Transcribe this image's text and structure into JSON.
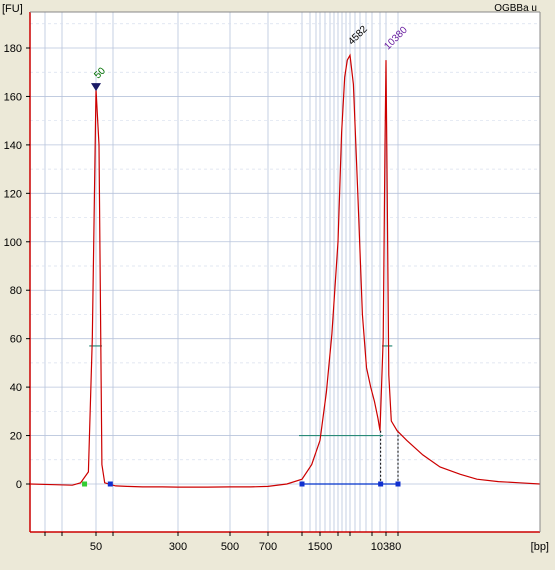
{
  "sample_name": "OGBBa u",
  "colors": {
    "trace": "#cc0000",
    "plot_background": "#ffffff",
    "frame": "#cc0000",
    "grid": "#b8c4dc",
    "marker_lower": "#007000",
    "marker_upper": "#6a1fa0",
    "peak_label": "#000000",
    "region_line": "#0033cc",
    "threshold_line": "#2a8a78"
  },
  "chart_data": {
    "type": "line",
    "title": "",
    "xlabel": "[bp]",
    "ylabel": "[FU]",
    "ylim": [
      -10,
      195
    ],
    "yticks": [
      0,
      20,
      40,
      60,
      80,
      100,
      120,
      140,
      160,
      180
    ],
    "xtick_labels": [
      "50",
      "300",
      "500",
      "700",
      "1500",
      "10380"
    ],
    "grid": true,
    "annotations": [
      {
        "label": "50",
        "x": 50,
        "y": 163,
        "kind": "lower-marker"
      },
      {
        "label": "4582",
        "x": 4582,
        "y": 177,
        "kind": "peak"
      },
      {
        "label": "10380",
        "x": 10380,
        "y": 175,
        "kind": "upper-marker"
      }
    ],
    "trace": {
      "name": "OGBBa u",
      "points": [
        [
          35,
          0.0
        ],
        [
          40,
          -0.3
        ],
        [
          44,
          -0.5
        ],
        [
          46,
          0.5
        ],
        [
          48,
          5
        ],
        [
          49,
          60
        ],
        [
          50,
          163
        ],
        [
          51,
          140
        ],
        [
          52,
          8
        ],
        [
          53,
          0.5
        ],
        [
          56,
          -0.5
        ],
        [
          60,
          -0.8
        ],
        [
          80,
          -1
        ],
        [
          120,
          -1.2
        ],
        [
          200,
          -1.2
        ],
        [
          300,
          -1.3
        ],
        [
          400,
          -1.3
        ],
        [
          500,
          -1.2
        ],
        [
          600,
          -1.2
        ],
        [
          700,
          -1.0
        ],
        [
          900,
          0.0
        ],
        [
          1100,
          2
        ],
        [
          1300,
          8
        ],
        [
          1500,
          18
        ],
        [
          1800,
          38
        ],
        [
          2100,
          62
        ],
        [
          2500,
          100
        ],
        [
          3000,
          145
        ],
        [
          3500,
          168
        ],
        [
          4000,
          175
        ],
        [
          4582,
          177
        ],
        [
          5000,
          165
        ],
        [
          5600,
          120
        ],
        [
          6300,
          70
        ],
        [
          7000,
          48
        ],
        [
          7800,
          40
        ],
        [
          8600,
          34
        ],
        [
          9400,
          27
        ],
        [
          9900,
          22
        ],
        [
          10150,
          60
        ],
        [
          10300,
          140
        ],
        [
          10380,
          175
        ],
        [
          10480,
          130
        ],
        [
          10650,
          45
        ],
        [
          10900,
          26
        ],
        [
          11500,
          22
        ],
        [
          13000,
          18
        ],
        [
          16000,
          12
        ],
        [
          20000,
          7
        ],
        [
          25000,
          4
        ],
        [
          30000,
          2
        ],
        [
          38000,
          1
        ],
        [
          48000,
          0.5
        ],
        [
          60000,
          0
        ]
      ]
    },
    "thresholds": [
      {
        "x_from": 49,
        "x_to": 51,
        "y": 57
      },
      {
        "x_from": 10300,
        "x_to": 10700,
        "y": 57
      },
      {
        "x_from": 1100,
        "x_to": 9900,
        "y": 20
      }
    ],
    "regions": [
      {
        "x_from": 1100,
        "x_to": 9950,
        "y": 0
      },
      {
        "x_from": 9950,
        "x_to": 11600,
        "y": 0
      }
    ],
    "region_dashes": [
      9950,
      11600
    ],
    "baseline_markers": [
      {
        "x": 47,
        "color": "#33cc33"
      },
      {
        "x": 55,
        "color": "#1030d0"
      },
      {
        "x": 1100,
        "color": "#1030d0"
      },
      {
        "x": 9950,
        "color": "#1030d0"
      },
      {
        "x": 11600,
        "color": "#1030d0"
      }
    ]
  }
}
